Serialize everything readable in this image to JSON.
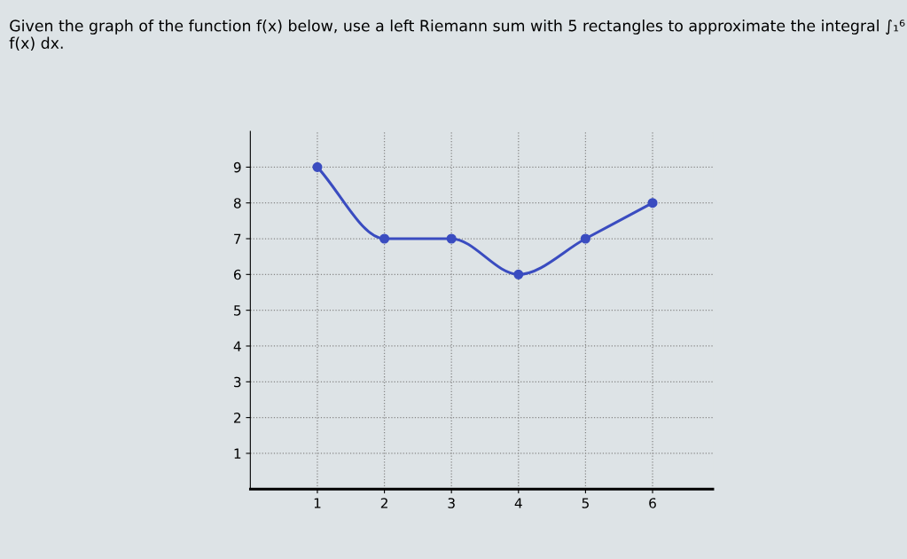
{
  "chart_data": {
    "type": "line",
    "title": "Given the graph of the function f(x) below, use a left Riemann sum with 5 rectangles to approximate the integral ∫₁⁶ f(x) dx.",
    "x": [
      1,
      2,
      3,
      4,
      5,
      6
    ],
    "series": [
      {
        "color": "#3a4cc0",
        "values": [
          9,
          7,
          7,
          6,
          7,
          8
        ]
      }
    ],
    "xlim": [
      0,
      6.9
    ],
    "ylim": [
      0,
      10
    ],
    "xticks": [
      1,
      2,
      3,
      4,
      5,
      6
    ],
    "yticks": [
      1,
      2,
      3,
      4,
      5,
      6,
      7,
      8,
      9
    ],
    "grid": true,
    "marker": "circle",
    "line_style": "solid"
  }
}
